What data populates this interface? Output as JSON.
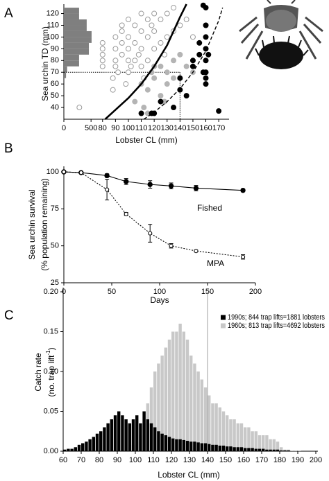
{
  "chart_data": [
    {
      "panel": "A",
      "type": "scatter",
      "x_label": "Lobster CL (mm)",
      "y_label": "Sea urchin TD (mm)",
      "xlim": [
        50,
        178
      ],
      "xticks": [
        80,
        90,
        100,
        110,
        120,
        130,
        140,
        150,
        160,
        170
      ],
      "ylim": [
        30,
        128
      ],
      "yticks": [
        40,
        50,
        60,
        70,
        80,
        90,
        100,
        110,
        120
      ],
      "histogram": {
        "bins": [
          65,
          70,
          75,
          80,
          85,
          90,
          95,
          100,
          105,
          110,
          115,
          120,
          125
        ],
        "counts": [
          40,
          60,
          280,
          280,
          460,
          460,
          510,
          510,
          420,
          420,
          280,
          280
        ],
        "xlim": [
          0,
          600
        ],
        "xticks": [
          0,
          500
        ],
        "color": "#7f7f7f"
      },
      "series": [
        {
          "color": "#ffffff",
          "edge": "#9a9a9a",
          "x": [
            80,
            80,
            80,
            80,
            80,
            88,
            88,
            90,
            90,
            90,
            90,
            92,
            95,
            95,
            95,
            95,
            98,
            100,
            100,
            100,
            100,
            100,
            102,
            105,
            105,
            105,
            108,
            110,
            110,
            110,
            110,
            112,
            115,
            115,
            115,
            118,
            120,
            120,
            120,
            125,
            125,
            128,
            130,
            130,
            135,
            135,
            140,
            145,
            150,
            160,
            62
          ],
          "values": [
            75,
            80,
            85,
            90,
            95,
            55,
            65,
            75,
            80,
            90,
            100,
            70,
            85,
            95,
            105,
            110,
            60,
            70,
            80,
            90,
            100,
            115,
            75,
            80,
            95,
            110,
            85,
            75,
            90,
            105,
            120,
            65,
            80,
            100,
            115,
            110,
            90,
            105,
            120,
            95,
            115,
            85,
            100,
            120,
            105,
            125,
            110,
            115,
            100,
            110,
            40
          ]
        },
        {
          "color": "#b4b4b4",
          "edge": "#b4b4b4",
          "x": [
            105,
            110,
            112,
            115,
            118,
            120,
            120,
            125,
            125,
            130,
            130,
            135,
            135,
            140,
            145,
            115,
            150,
            128
          ],
          "values": [
            45,
            60,
            40,
            55,
            70,
            65,
            75,
            50,
            75,
            60,
            70,
            65,
            80,
            85,
            75,
            35,
            70,
            45
          ]
        },
        {
          "color": "#000000",
          "edge": "#000000",
          "x": [
            110,
            118,
            120,
            125,
            135,
            140,
            140,
            145,
            150,
            150,
            155,
            158,
            160,
            160,
            160,
            160,
            160,
            160,
            160,
            160,
            158,
            170,
            162,
            155
          ],
          "values": [
            35,
            35,
            35,
            45,
            40,
            55,
            65,
            50,
            75,
            80,
            85,
            70,
            60,
            65,
            70,
            80,
            90,
            100,
            110,
            125,
            127,
            37,
            85,
            95
          ]
        }
      ],
      "curves": [
        {
          "style": "solid",
          "color": "#000000",
          "x": [
            82,
            90,
            100,
            110,
            120,
            130,
            140,
            145
          ],
          "values": [
            30,
            38,
            48,
            60,
            75,
            93,
            117,
            128
          ]
        },
        {
          "style": "dashed",
          "color": "#000000",
          "x": [
            112,
            120,
            130,
            140,
            150,
            160,
            170,
            173
          ],
          "values": [
            30,
            36,
            45,
            56,
            70,
            88,
            114,
            125
          ]
        }
      ],
      "ref_x": 140,
      "ref_y": 70
    },
    {
      "panel": "B",
      "type": "line",
      "x_label": "Days",
      "y_label": "Sea urchin survival",
      "y_label_2": "(% population remaining)",
      "xlim": [
        0,
        200
      ],
      "xticks": [
        0,
        50,
        100,
        150,
        200
      ],
      "ylim": [
        25,
        103
      ],
      "yticks": [
        25,
        50,
        75,
        100
      ],
      "x": [
        0,
        18,
        45,
        65,
        90,
        112,
        138,
        187
      ],
      "series": [
        {
          "name": "Fished",
          "color": "#000000",
          "marker_fill": "#000000",
          "dash": "solid",
          "values": [
            100,
            99.5,
            97.5,
            93.5,
            91.5,
            90.5,
            89,
            87.5
          ],
          "errors": [
            0.5,
            0.5,
            1.2,
            2,
            2.5,
            2,
            1.8,
            1
          ]
        },
        {
          "name": "MPA",
          "color": "#000000",
          "marker_fill": "#ffffff",
          "dash": "dotted",
          "values": [
            100,
            99.5,
            88,
            71.5,
            58.5,
            50,
            46.5,
            42.5
          ],
          "errors": [
            0.5,
            0.5,
            7,
            1,
            6,
            1.5,
            0.5,
            1.5
          ]
        }
      ]
    },
    {
      "panel": "C",
      "type": "histogram",
      "x_label": "Lobster CL (mm)",
      "y_label": "Catch rate",
      "y_label_2": "(no. trap lift",
      "y_label_sup": "-1",
      "y_label_end": ")",
      "bins": [
        60,
        62,
        64,
        66,
        68,
        70,
        72,
        74,
        76,
        78,
        80,
        82,
        84,
        86,
        88,
        90,
        92,
        94,
        96,
        98,
        100,
        102,
        104,
        106,
        108,
        110,
        112,
        114,
        116,
        118,
        120,
        122,
        124,
        126,
        128,
        130,
        132,
        134,
        136,
        138,
        140,
        142,
        144,
        146,
        148,
        150,
        152,
        154,
        156,
        158,
        160,
        162,
        164,
        166,
        168,
        170,
        172,
        174,
        176,
        178,
        180,
        182,
        184,
        186,
        188,
        190,
        192,
        194,
        196,
        198,
        200
      ],
      "xlim": [
        60,
        200
      ],
      "xticks": [
        60,
        70,
        80,
        90,
        100,
        110,
        120,
        130,
        140,
        150,
        160,
        170,
        180,
        190,
        200
      ],
      "ylim": [
        0,
        0.2
      ],
      "yticks": [
        {
          "value": 0,
          "label": "0.00"
        },
        {
          "value": 0.05,
          "label": "0.05"
        },
        {
          "value": 0.1,
          "label": "0.10"
        },
        {
          "value": 0.15,
          "label": "0.15"
        },
        {
          "value": 0.2,
          "label": "0.20"
        }
      ],
      "series": [
        {
          "name": "1990s; 844 trap lifts=1881 lobsters",
          "color": "#000000",
          "values": [
            0.002,
            0.003,
            0.003,
            0.005,
            0.008,
            0.01,
            0.012,
            0.015,
            0.018,
            0.022,
            0.025,
            0.03,
            0.035,
            0.04,
            0.045,
            0.05,
            0.045,
            0.04,
            0.035,
            0.04,
            0.045,
            0.035,
            0.05,
            0.04,
            0.035,
            0.03,
            0.025,
            0.022,
            0.02,
            0.018,
            0.016,
            0.015,
            0.015,
            0.014,
            0.013,
            0.012,
            0.012,
            0.011,
            0.01,
            0.01,
            0.009,
            0.008,
            0.008,
            0.007,
            0.007,
            0.006,
            0.006,
            0.005,
            0.005,
            0.005,
            0.004,
            0.004,
            0.004,
            0.003,
            0.003,
            0.003,
            0.002,
            0.002,
            0.002,
            0.002,
            0.001,
            0.001,
            0.001,
            0,
            0,
            0,
            0,
            0,
            0,
            0
          ]
        },
        {
          "name": "1960s; 813 trap lifts=4692 lobsters",
          "color": "#c8c8c8",
          "values": [
            0,
            0,
            0,
            0,
            0,
            0,
            0,
            0,
            0,
            0,
            0,
            0,
            0,
            0,
            0,
            0,
            0,
            0,
            0.005,
            0.008,
            0.012,
            0.02,
            0.035,
            0.06,
            0.08,
            0.1,
            0.11,
            0.12,
            0.13,
            0.14,
            0.15,
            0.15,
            0.16,
            0.15,
            0.14,
            0.12,
            0.11,
            0.1,
            0.09,
            0.08,
            0.07,
            0.06,
            0.06,
            0.055,
            0.05,
            0.045,
            0.04,
            0.04,
            0.035,
            0.035,
            0.03,
            0.03,
            0.025,
            0.025,
            0.02,
            0.02,
            0.02,
            0.015,
            0.015,
            0.012,
            0.005,
            0.002,
            0.002,
            0.001,
            0.001,
            0.001,
            0,
            0,
            0,
            0
          ]
        }
      ],
      "vline": 140
    }
  ]
}
